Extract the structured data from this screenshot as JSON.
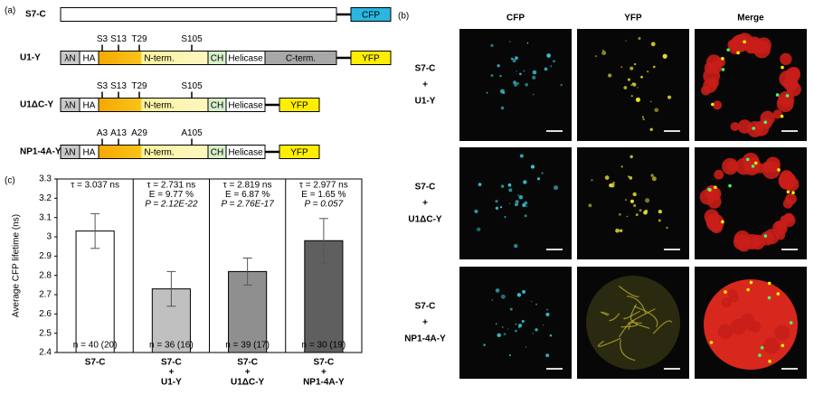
{
  "panel_labels": [
    "(a)",
    "(b)",
    "(c)"
  ],
  "constructs": [
    {
      "name": "S7-C",
      "domains": [
        "CFP"
      ],
      "sites": [],
      "site_color": "#000000"
    },
    {
      "name": "U1-Y",
      "domains": [
        "λN",
        "HA",
        "N-term.",
        "CH",
        "Helicase",
        "C-term.",
        "YFP"
      ],
      "sites": [
        "S3",
        "S13",
        "T29",
        "S105"
      ],
      "site_color": "#000000"
    },
    {
      "name": "U1ΔC-Y",
      "domains": [
        "λN",
        "HA",
        "N-term.",
        "CH",
        "Helicase",
        "YFP"
      ],
      "sites": [
        "S3",
        "S13",
        "T29",
        "S105"
      ],
      "site_color": "#000000"
    },
    {
      "name": "NP1-4A-Y",
      "domains": [
        "λN",
        "HA",
        "N-term.",
        "CH",
        "Helicase",
        "YFP"
      ],
      "sites": [
        "A3",
        "A13",
        "A29",
        "A105"
      ],
      "site_color": "#e0201b"
    }
  ],
  "imaging": {
    "columns": [
      "CFP",
      "YFP",
      "Merge"
    ],
    "rows": [
      [
        "S7-C",
        "+",
        "U1-Y"
      ],
      [
        "S7-C",
        "+",
        "U1ΔC-Y"
      ],
      [
        "S7-C",
        "+",
        "NP1-4A-Y"
      ]
    ]
  },
  "chart_data": {
    "type": "bar",
    "y_label": "Average CFP lifetime (ns)",
    "categories": [
      [
        "S7-C"
      ],
      [
        "S7-C",
        "+",
        "U1-Y"
      ],
      [
        "S7-C",
        "+",
        "U1ΔC-Y"
      ],
      [
        "S7-C",
        "+",
        "NP1-4A-Y"
      ]
    ],
    "values": [
      3.03,
      2.73,
      2.82,
      2.98
    ],
    "errors": [
      0.09,
      0.09,
      0.07,
      0.115
    ],
    "colors": [
      "#ffffff",
      "#c0c0c0",
      "#8f8f8f",
      "#5f5f5f"
    ],
    "annotations": [
      [
        "τ = 3.037 ns"
      ],
      [
        "τ = 2.731 ns",
        "E = 9.77 %",
        "P = 2.12E-22"
      ],
      [
        "τ = 2.819 ns",
        "E = 6.87 %",
        "P = 2.76E-17"
      ],
      [
        "τ = 2.977 ns",
        "E = 1.65 %",
        "P = 0.057"
      ]
    ],
    "n_labels": [
      "n = 40 (20)",
      "n = 36 (16)",
      "n = 39 (17)",
      "n = 30 (19)"
    ],
    "ylim": [
      2.4,
      3.3
    ],
    "yticks": [
      2.4,
      2.5,
      2.6,
      2.7,
      2.8,
      2.9,
      3,
      3.1,
      3.2,
      3.3
    ]
  }
}
